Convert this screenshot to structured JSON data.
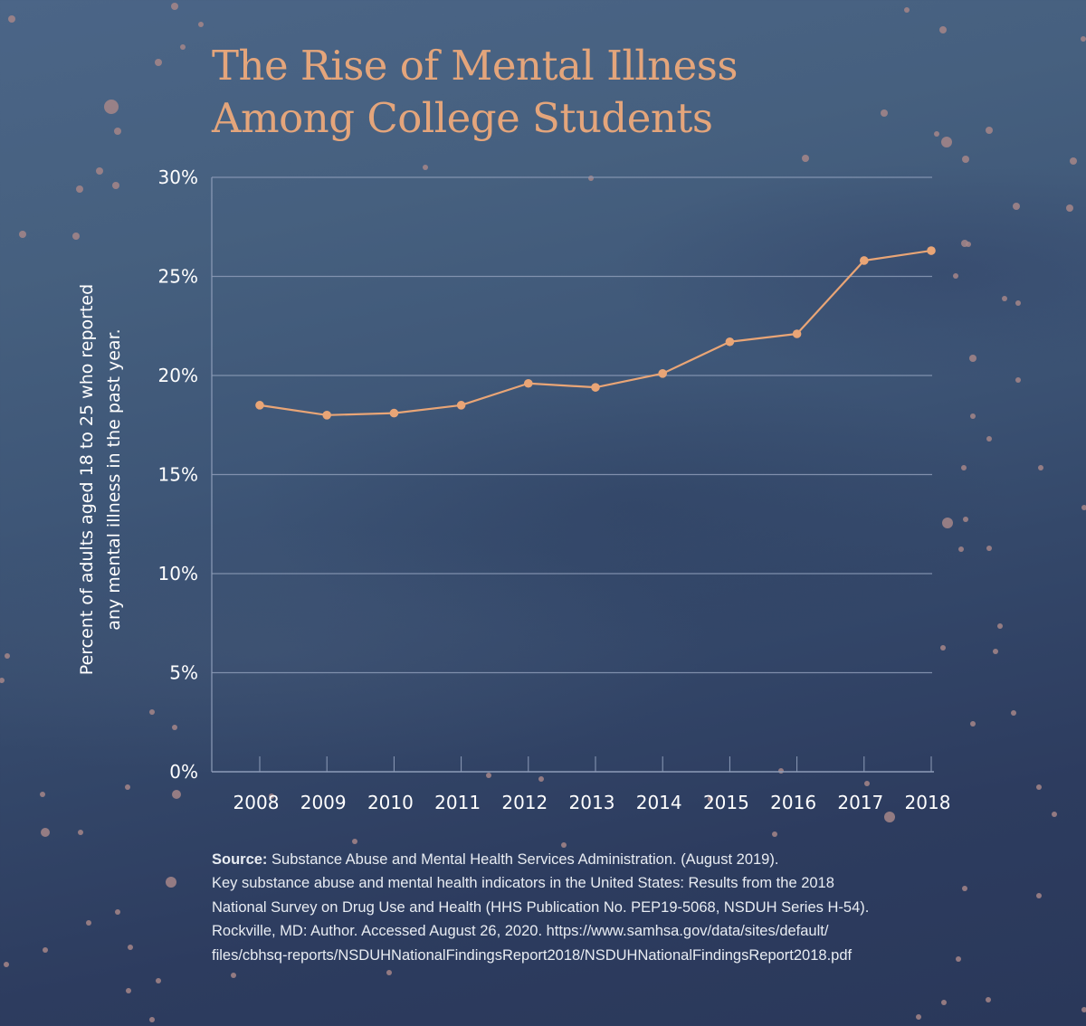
{
  "title": {
    "line1": "The Rise of Mental Illness",
    "line2": "Among College Students"
  },
  "colors": {
    "title": "#e4a57b",
    "line": "#e9a576",
    "grid": "#8d9cb8",
    "text": "#ffffff",
    "speck": "#a68688"
  },
  "chart_data": {
    "type": "line",
    "title": "The Rise of Mental Illness Among College Students",
    "xlabel": "",
    "ylabel": "Percent of adults aged 18 to 25 who reported any mental illness in the past year.",
    "ylabel_lines": [
      "Percent of adults aged 18 to 25 who reported",
      "any mental illness in the past year."
    ],
    "categories": [
      "2008",
      "2009",
      "2010",
      "2011",
      "2012",
      "2013",
      "2014",
      "2015",
      "2016",
      "2017",
      "2018"
    ],
    "series": [
      {
        "name": "Any mental illness, ages 18-25",
        "values": [
          18.5,
          18.0,
          18.1,
          18.5,
          19.6,
          19.4,
          20.1,
          21.7,
          22.1,
          25.8,
          26.3
        ]
      }
    ],
    "ylim": [
      0,
      30
    ],
    "yticks": [
      0,
      5,
      10,
      15,
      20,
      25,
      30
    ],
    "ytick_labels": [
      "0%",
      "5%",
      "10%",
      "15%",
      "20%",
      "25%",
      "30%"
    ],
    "grid": true,
    "legend": "none"
  },
  "source": {
    "label": "Source:",
    "line1": " Substance Abuse and Mental Health Services Administration. (August 2019).",
    "line2": "Key substance abuse and mental health indicators in the United States: Results from the 2018",
    "line3": "National Survey on Drug Use and Health (HHS Publication No. PEP19-5068, NSDUH Series H-54).",
    "line4": "Rockville, MD: Author. Accessed August 26, 2020. https://www.samhsa.gov/data/sites/default/",
    "line5": "files/cbhsq-reports/NSDUHNationalFindingsReport2018/NSDUHNationalFindingsReport2018.pdf"
  }
}
